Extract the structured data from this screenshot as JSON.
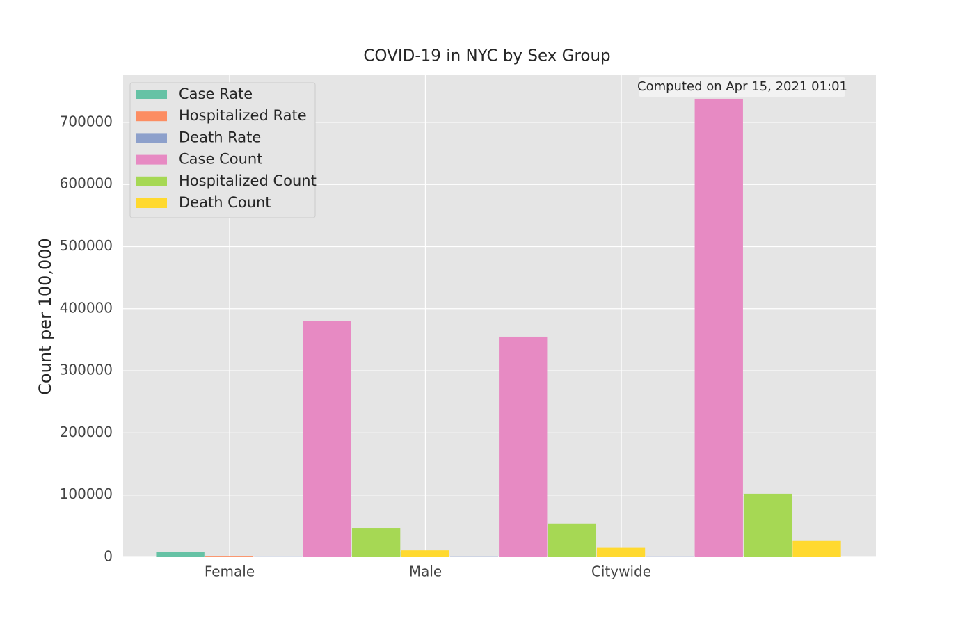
{
  "chart_data": {
    "type": "bar",
    "title": "COVID-19 in NYC by Sex Group",
    "ylabel": "Count per 100,000",
    "annotation": "Computed on Apr 15, 2021 01:01",
    "categories": [
      "Female",
      "Male",
      "Citywide"
    ],
    "series": [
      {
        "name": "Case Rate",
        "color": "#66c2a5",
        "values": [
          8000,
          8500,
          8800
        ]
      },
      {
        "name": "Hospitalized Rate",
        "color": "#fc8d62",
        "values": [
          1000,
          1200,
          1100
        ]
      },
      {
        "name": "Death Rate",
        "color": "#8da0cb",
        "values": [
          250,
          380,
          310
        ]
      },
      {
        "name": "Case Count",
        "color": "#e78ac3",
        "values": [
          380000,
          355000,
          738000
        ]
      },
      {
        "name": "Hospitalized Count",
        "color": "#a6d854",
        "values": [
          47000,
          54000,
          102000
        ]
      },
      {
        "name": "Death Count",
        "color": "#ffd92f",
        "values": [
          11000,
          15000,
          26000
        ]
      }
    ],
    "ylim": [
      0,
      776000
    ],
    "yticks": [
      0,
      100000,
      200000,
      300000,
      400000,
      500000,
      600000,
      700000
    ],
    "grid": true,
    "legend": "upper left"
  }
}
